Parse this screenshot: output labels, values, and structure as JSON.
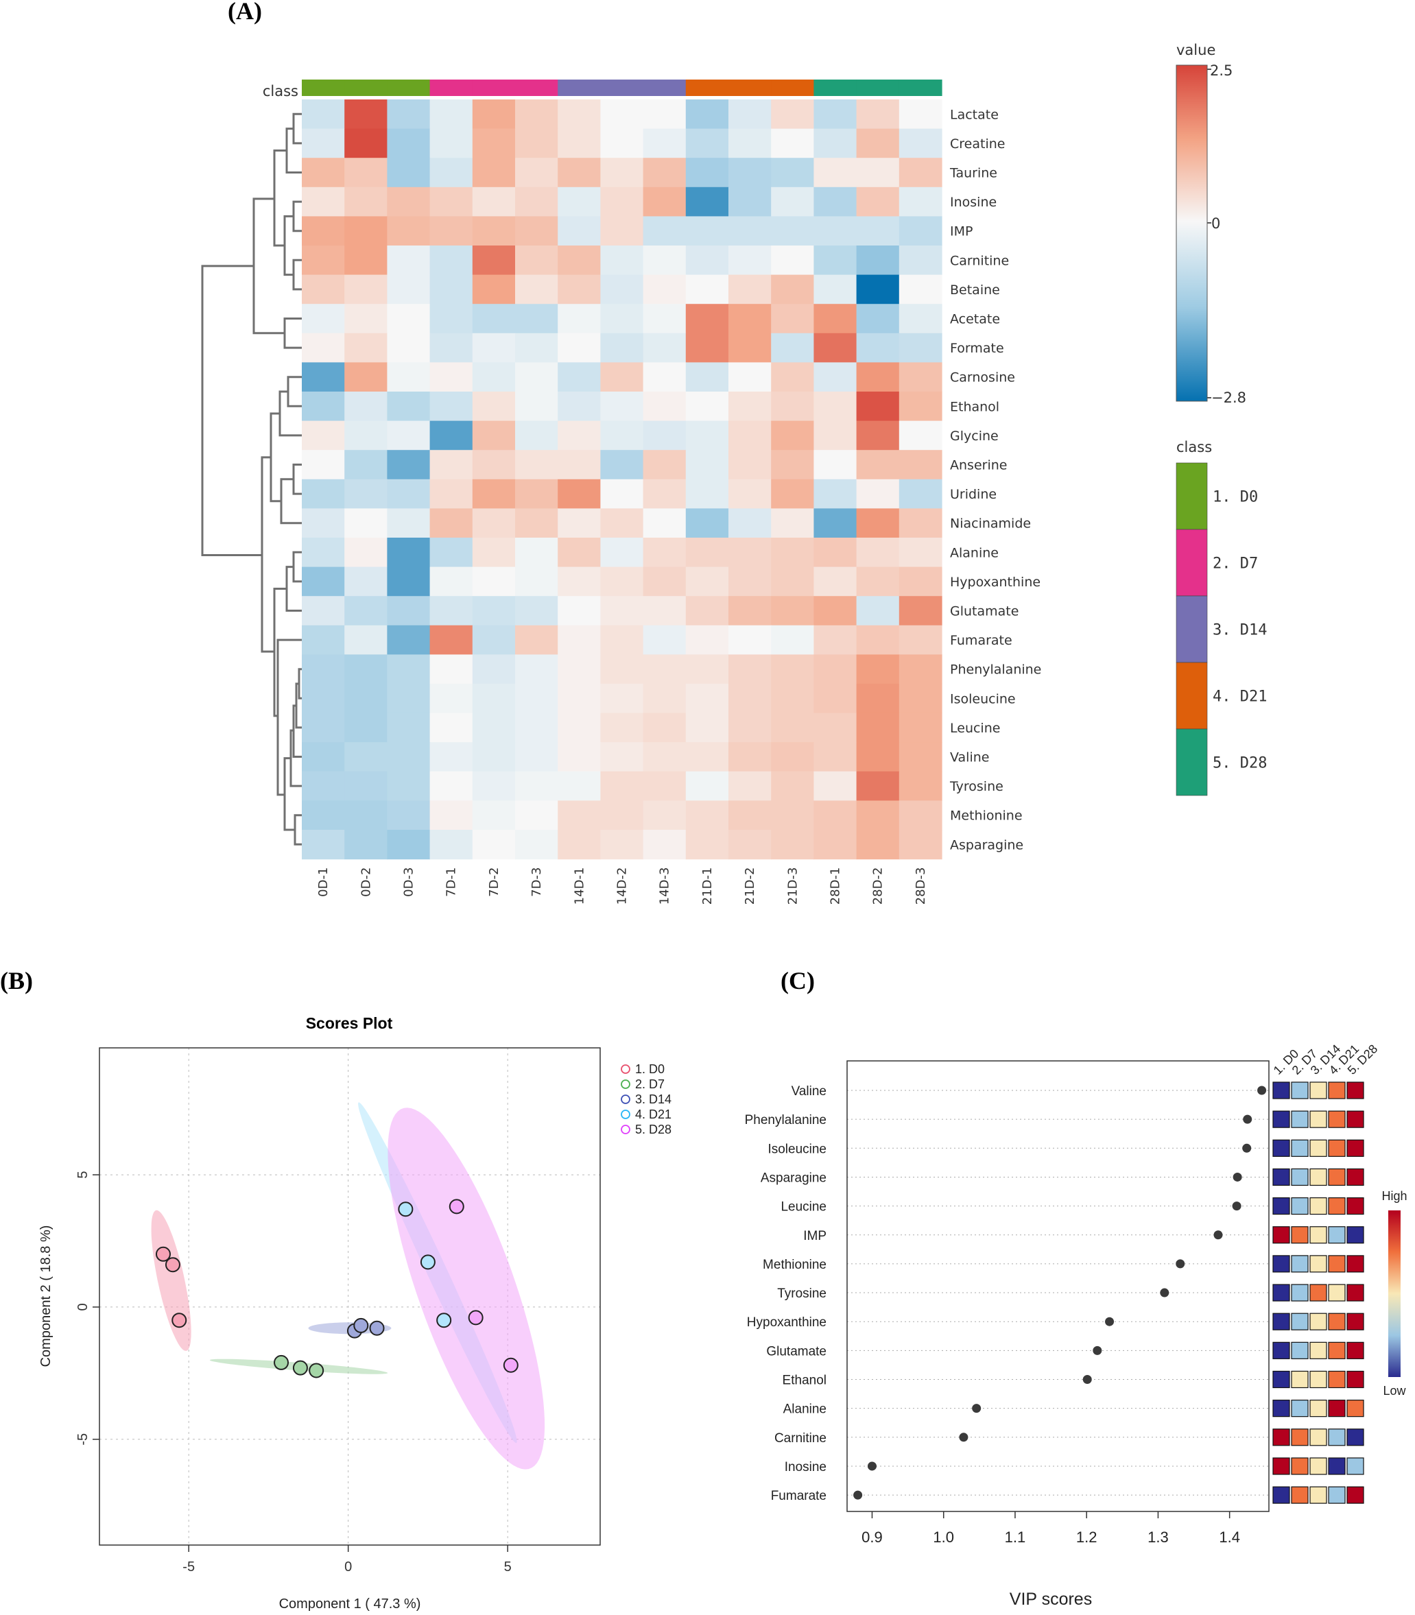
{
  "panel_labels": {
    "a": "(A)",
    "b": "(B)",
    "c": "(C)"
  },
  "chart_data": [
    {
      "type": "heatmap",
      "panel": "(A)",
      "class_label": "class",
      "columns": [
        "0D-1",
        "0D-2",
        "0D-3",
        "7D-1",
        "7D-2",
        "7D-3",
        "14D-1",
        "14D-2",
        "14D-3",
        "21D-1",
        "21D-2",
        "21D-3",
        "28D-1",
        "28D-2",
        "28D-3"
      ],
      "column_class": [
        0,
        0,
        0,
        1,
        1,
        1,
        2,
        2,
        2,
        3,
        3,
        3,
        4,
        4,
        4
      ],
      "classes": [
        {
          "name": "1. D0",
          "color": "#6aa421"
        },
        {
          "name": "2. D7",
          "color": "#e4318b"
        },
        {
          "name": "3. D14",
          "color": "#7670b3"
        },
        {
          "name": "4. D21",
          "color": "#de5f0b"
        },
        {
          "name": "5. D28",
          "color": "#1e9f77"
        }
      ],
      "rows": [
        "Lactate",
        "Creatine",
        "Taurine",
        "Inosine",
        "IMP",
        "Carnitine",
        "Betaine",
        "Acetate",
        "Formate",
        "Carnosine",
        "Ethanol",
        "Glycine",
        "Anserine",
        "Uridine",
        "Niacinamide",
        "Alanine",
        "Hypoxanthine",
        "Glutamate",
        "Fumarate",
        "Phenylalanine",
        "Isoleucine",
        "Leucine",
        "Valine",
        "Tyrosine",
        "Methionine",
        "Asparagine"
      ],
      "values": [
        [
          -0.6,
          2.3,
          -1.0,
          -0.3,
          1.1,
          0.6,
          0.3,
          0.0,
          0.0,
          -1.2,
          -0.4,
          0.4,
          -0.8,
          0.5,
          0.0
        ],
        [
          -0.4,
          2.4,
          -1.2,
          -0.3,
          1.0,
          0.6,
          0.3,
          0.0,
          -0.2,
          -0.8,
          -0.3,
          0.0,
          -0.5,
          0.8,
          -0.4
        ],
        [
          0.9,
          0.7,
          -1.2,
          -0.5,
          1.0,
          0.4,
          0.8,
          0.3,
          0.8,
          -1.2,
          -1.0,
          -0.9,
          0.2,
          0.2,
          0.7
        ],
        [
          0.3,
          0.6,
          0.8,
          0.6,
          0.3,
          0.5,
          -0.3,
          0.4,
          1.0,
          -2.2,
          -1.0,
          -0.3,
          -1.0,
          0.7,
          -0.3
        ],
        [
          1.1,
          1.2,
          0.9,
          0.8,
          0.9,
          0.8,
          -0.4,
          0.4,
          -0.6,
          -0.6,
          -0.6,
          -0.6,
          -0.6,
          -0.6,
          -0.8
        ],
        [
          1.0,
          1.2,
          -0.2,
          -0.6,
          1.8,
          0.6,
          0.8,
          -0.3,
          -0.1,
          -0.4,
          -0.2,
          0.0,
          -0.9,
          -1.4,
          -0.5
        ],
        [
          0.6,
          0.4,
          -0.2,
          -0.6,
          1.2,
          0.3,
          0.6,
          -0.4,
          0.1,
          0.0,
          0.4,
          0.8,
          -0.3,
          -2.8,
          0.0
        ],
        [
          -0.2,
          0.2,
          0.0,
          -0.6,
          -0.8,
          -0.8,
          -0.1,
          -0.3,
          -0.1,
          1.6,
          1.2,
          0.7,
          1.4,
          -1.2,
          -0.3
        ],
        [
          0.1,
          0.4,
          0.0,
          -0.5,
          -0.2,
          -0.3,
          0.0,
          -0.5,
          -0.3,
          1.6,
          1.2,
          -0.6,
          1.9,
          -0.8,
          -0.7
        ],
        [
          -1.9,
          1.1,
          -0.1,
          0.1,
          -0.3,
          -0.1,
          -0.6,
          0.6,
          0.0,
          -0.5,
          0.0,
          0.6,
          -0.4,
          1.4,
          0.8
        ],
        [
          -1.1,
          -0.4,
          -0.9,
          -0.6,
          0.3,
          -0.1,
          -0.4,
          -0.2,
          0.1,
          0.0,
          0.3,
          0.5,
          0.3,
          2.3,
          0.9
        ],
        [
          0.2,
          -0.3,
          -0.2,
          -2.0,
          0.8,
          -0.3,
          0.2,
          -0.3,
          -0.4,
          -0.3,
          0.4,
          1.0,
          0.3,
          1.8,
          0.0
        ],
        [
          0.0,
          -0.9,
          -1.8,
          0.3,
          0.5,
          0.3,
          0.3,
          -1.0,
          0.6,
          -0.3,
          0.4,
          0.8,
          0.0,
          0.8,
          0.8
        ],
        [
          -0.9,
          -0.7,
          -0.8,
          0.4,
          1.1,
          0.8,
          1.4,
          0.0,
          0.4,
          -0.3,
          0.3,
          1.0,
          -0.6,
          0.1,
          -0.8
        ],
        [
          -0.4,
          0.0,
          -0.3,
          0.8,
          0.4,
          0.6,
          0.2,
          0.4,
          0.0,
          -1.3,
          -0.4,
          0.2,
          -1.8,
          1.4,
          0.7
        ],
        [
          -0.6,
          0.1,
          -2.0,
          -0.8,
          0.3,
          -0.1,
          0.6,
          -0.2,
          0.4,
          0.5,
          0.5,
          0.6,
          0.7,
          0.4,
          0.3
        ],
        [
          -1.4,
          -0.4,
          -2.0,
          -0.1,
          0.0,
          -0.1,
          0.2,
          0.3,
          0.5,
          0.3,
          0.5,
          0.6,
          0.3,
          0.6,
          0.7
        ],
        [
          -0.4,
          -0.8,
          -1.0,
          -0.5,
          -0.6,
          -0.5,
          0.0,
          0.2,
          0.2,
          0.5,
          0.8,
          0.9,
          1.1,
          -0.5,
          1.5
        ],
        [
          -0.9,
          -0.3,
          -1.7,
          1.6,
          -0.7,
          0.6,
          0.1,
          0.3,
          -0.2,
          0.1,
          0.0,
          -0.1,
          0.5,
          0.7,
          0.6
        ],
        [
          -1.0,
          -1.1,
          -0.9,
          0.0,
          -0.4,
          -0.2,
          0.1,
          0.3,
          0.3,
          0.3,
          0.5,
          0.6,
          0.7,
          1.3,
          1.0
        ],
        [
          -1.0,
          -1.1,
          -0.9,
          -0.1,
          -0.3,
          -0.2,
          0.1,
          0.2,
          0.3,
          0.2,
          0.5,
          0.6,
          0.7,
          1.4,
          1.0
        ],
        [
          -1.0,
          -1.1,
          -0.9,
          0.0,
          -0.3,
          -0.2,
          0.1,
          0.3,
          0.4,
          0.2,
          0.5,
          0.6,
          0.6,
          1.4,
          1.0
        ],
        [
          -1.1,
          -0.9,
          -0.9,
          -0.2,
          -0.3,
          -0.2,
          0.1,
          0.2,
          0.3,
          0.3,
          0.6,
          0.7,
          0.6,
          1.4,
          1.0
        ],
        [
          -1.0,
          -1.0,
          -0.9,
          0.0,
          -0.2,
          -0.1,
          -0.1,
          0.4,
          0.4,
          -0.1,
          0.3,
          0.6,
          0.2,
          1.8,
          1.0
        ],
        [
          -1.1,
          -1.1,
          -1.0,
          0.1,
          -0.1,
          0.0,
          0.4,
          0.4,
          0.3,
          0.4,
          0.6,
          0.6,
          0.7,
          1.0,
          0.7
        ],
        [
          -0.8,
          -1.1,
          -1.3,
          -0.3,
          0.0,
          -0.1,
          0.4,
          0.3,
          0.1,
          0.4,
          0.5,
          0.6,
          0.7,
          1.0,
          0.7
        ]
      ],
      "colorbar": {
        "title": "value",
        "max": 2.5,
        "mid": 0,
        "min": -2.8,
        "max_label": "2.5",
        "mid_label": "0",
        "min_label": "−2.8",
        "colors": [
          "#0571b0",
          "#f7f7f7",
          "#ca0020"
        ]
      }
    },
    {
      "type": "scatter",
      "panel": "(B)",
      "title": "Scores Plot",
      "xlabel": "Component 1 ( 47.3 %)",
      "ylabel": "Component 2 ( 18.8 %)",
      "xlim": [
        -7.8,
        7.9
      ],
      "ylim": [
        -9.0,
        9.8
      ],
      "xticks": [
        -5,
        0,
        5
      ],
      "yticks": [
        -5,
        0,
        5
      ],
      "xtick_labels": [
        "-5",
        "0",
        "5"
      ],
      "ytick_labels": [
        "-5",
        "0",
        "5"
      ],
      "legend_position": "top-right",
      "series": [
        {
          "name": "1. D0",
          "color": "#e8506e",
          "fill": "#f6a3b6",
          "points": [
            [
              -5.8,
              2.0
            ],
            [
              -5.5,
              1.6
            ],
            [
              -5.3,
              -0.5
            ]
          ],
          "ellipse": {
            "cx": -5.55,
            "cy": 1.0,
            "rx": 2.7,
            "ry": 0.42,
            "angle_deg": -80
          }
        },
        {
          "name": "2. D7",
          "color": "#4caf50",
          "fill": "#a5d6a7",
          "points": [
            [
              -2.1,
              -2.1
            ],
            [
              -1.5,
              -2.3
            ],
            [
              -1.0,
              -2.4
            ]
          ],
          "ellipse": {
            "cx": -1.55,
            "cy": -2.25,
            "rx": 2.8,
            "ry": 0.15,
            "angle_deg": -5
          }
        },
        {
          "name": "3. D14",
          "color": "#3f51b5",
          "fill": "#9fa8da",
          "points": [
            [
              0.2,
              -0.9
            ],
            [
              0.4,
              -0.7
            ],
            [
              0.9,
              -0.8
            ]
          ],
          "ellipse": {
            "cx": 0.05,
            "cy": -0.8,
            "rx": 1.3,
            "ry": 0.22,
            "angle_deg": 0
          }
        },
        {
          "name": "4. D21",
          "color": "#29b6f6",
          "fill": "#b3e5fc",
          "points": [
            [
              1.8,
              3.7
            ],
            [
              2.5,
              1.7
            ],
            [
              3.0,
              -0.5
            ]
          ],
          "ellipse": {
            "cx": 2.8,
            "cy": 1.3,
            "rx": 6.9,
            "ry": 0.32,
            "angle_deg": -69
          }
        },
        {
          "name": "5. D28",
          "color": "#e040fb",
          "fill": "#f3a8fa",
          "points": [
            [
              3.4,
              3.8
            ],
            [
              4.0,
              -0.4
            ],
            [
              5.1,
              -2.2
            ]
          ],
          "ellipse": {
            "cx": 3.7,
            "cy": 0.7,
            "rx": 7.1,
            "ry": 1.55,
            "angle_deg": -74
          }
        }
      ]
    },
    {
      "type": "scatter",
      "panel": "(C)",
      "xlabel": "VIP scores",
      "xlim": [
        0.865,
        1.455
      ],
      "xticks": [
        0.9,
        1.0,
        1.1,
        1.2,
        1.3,
        1.4
      ],
      "xtick_labels": [
        "0.9",
        "1.0",
        "1.1",
        "1.2",
        "1.3",
        "1.4"
      ],
      "features": [
        "Valine",
        "Phenylalanine",
        "Isoleucine",
        "Asparagine",
        "Leucine",
        "IMP",
        "Methionine",
        "Tyrosine",
        "Hypoxanthine",
        "Glutamate",
        "Ethanol",
        "Alanine",
        "Carnitine",
        "Inosine",
        "Fumarate"
      ],
      "vip": [
        1.445,
        1.425,
        1.424,
        1.411,
        1.41,
        1.384,
        1.331,
        1.309,
        1.232,
        1.215,
        1.201,
        1.046,
        1.028,
        0.9,
        0.88
      ],
      "group_labels": [
        "1. D0",
        "2. D7",
        "3. D14",
        "4. D21",
        "5. D28"
      ],
      "levels": [
        [
          0,
          1,
          2,
          3,
          4
        ],
        [
          0,
          1,
          2,
          3,
          4
        ],
        [
          0,
          1,
          2,
          3,
          4
        ],
        [
          0,
          1,
          2,
          3,
          4
        ],
        [
          0,
          1,
          2,
          3,
          4
        ],
        [
          4,
          3,
          2,
          1,
          0
        ],
        [
          0,
          1,
          2,
          3,
          4
        ],
        [
          0,
          1,
          3,
          2,
          4
        ],
        [
          0,
          1,
          2,
          3,
          4
        ],
        [
          0,
          1,
          2,
          3,
          4
        ],
        [
          0,
          2,
          2,
          3,
          4
        ],
        [
          0,
          1,
          2,
          4,
          3
        ],
        [
          4,
          3,
          2,
          1,
          0
        ],
        [
          4,
          3,
          2,
          0,
          1
        ],
        [
          0,
          3,
          2,
          1,
          4
        ]
      ],
      "level_colors": [
        "#2a2b8f",
        "#9cc7e3",
        "#f8e8b6",
        "#f0703c",
        "#b3001e"
      ],
      "colorbar_labels": {
        "high": "High",
        "low": "Low"
      }
    }
  ]
}
